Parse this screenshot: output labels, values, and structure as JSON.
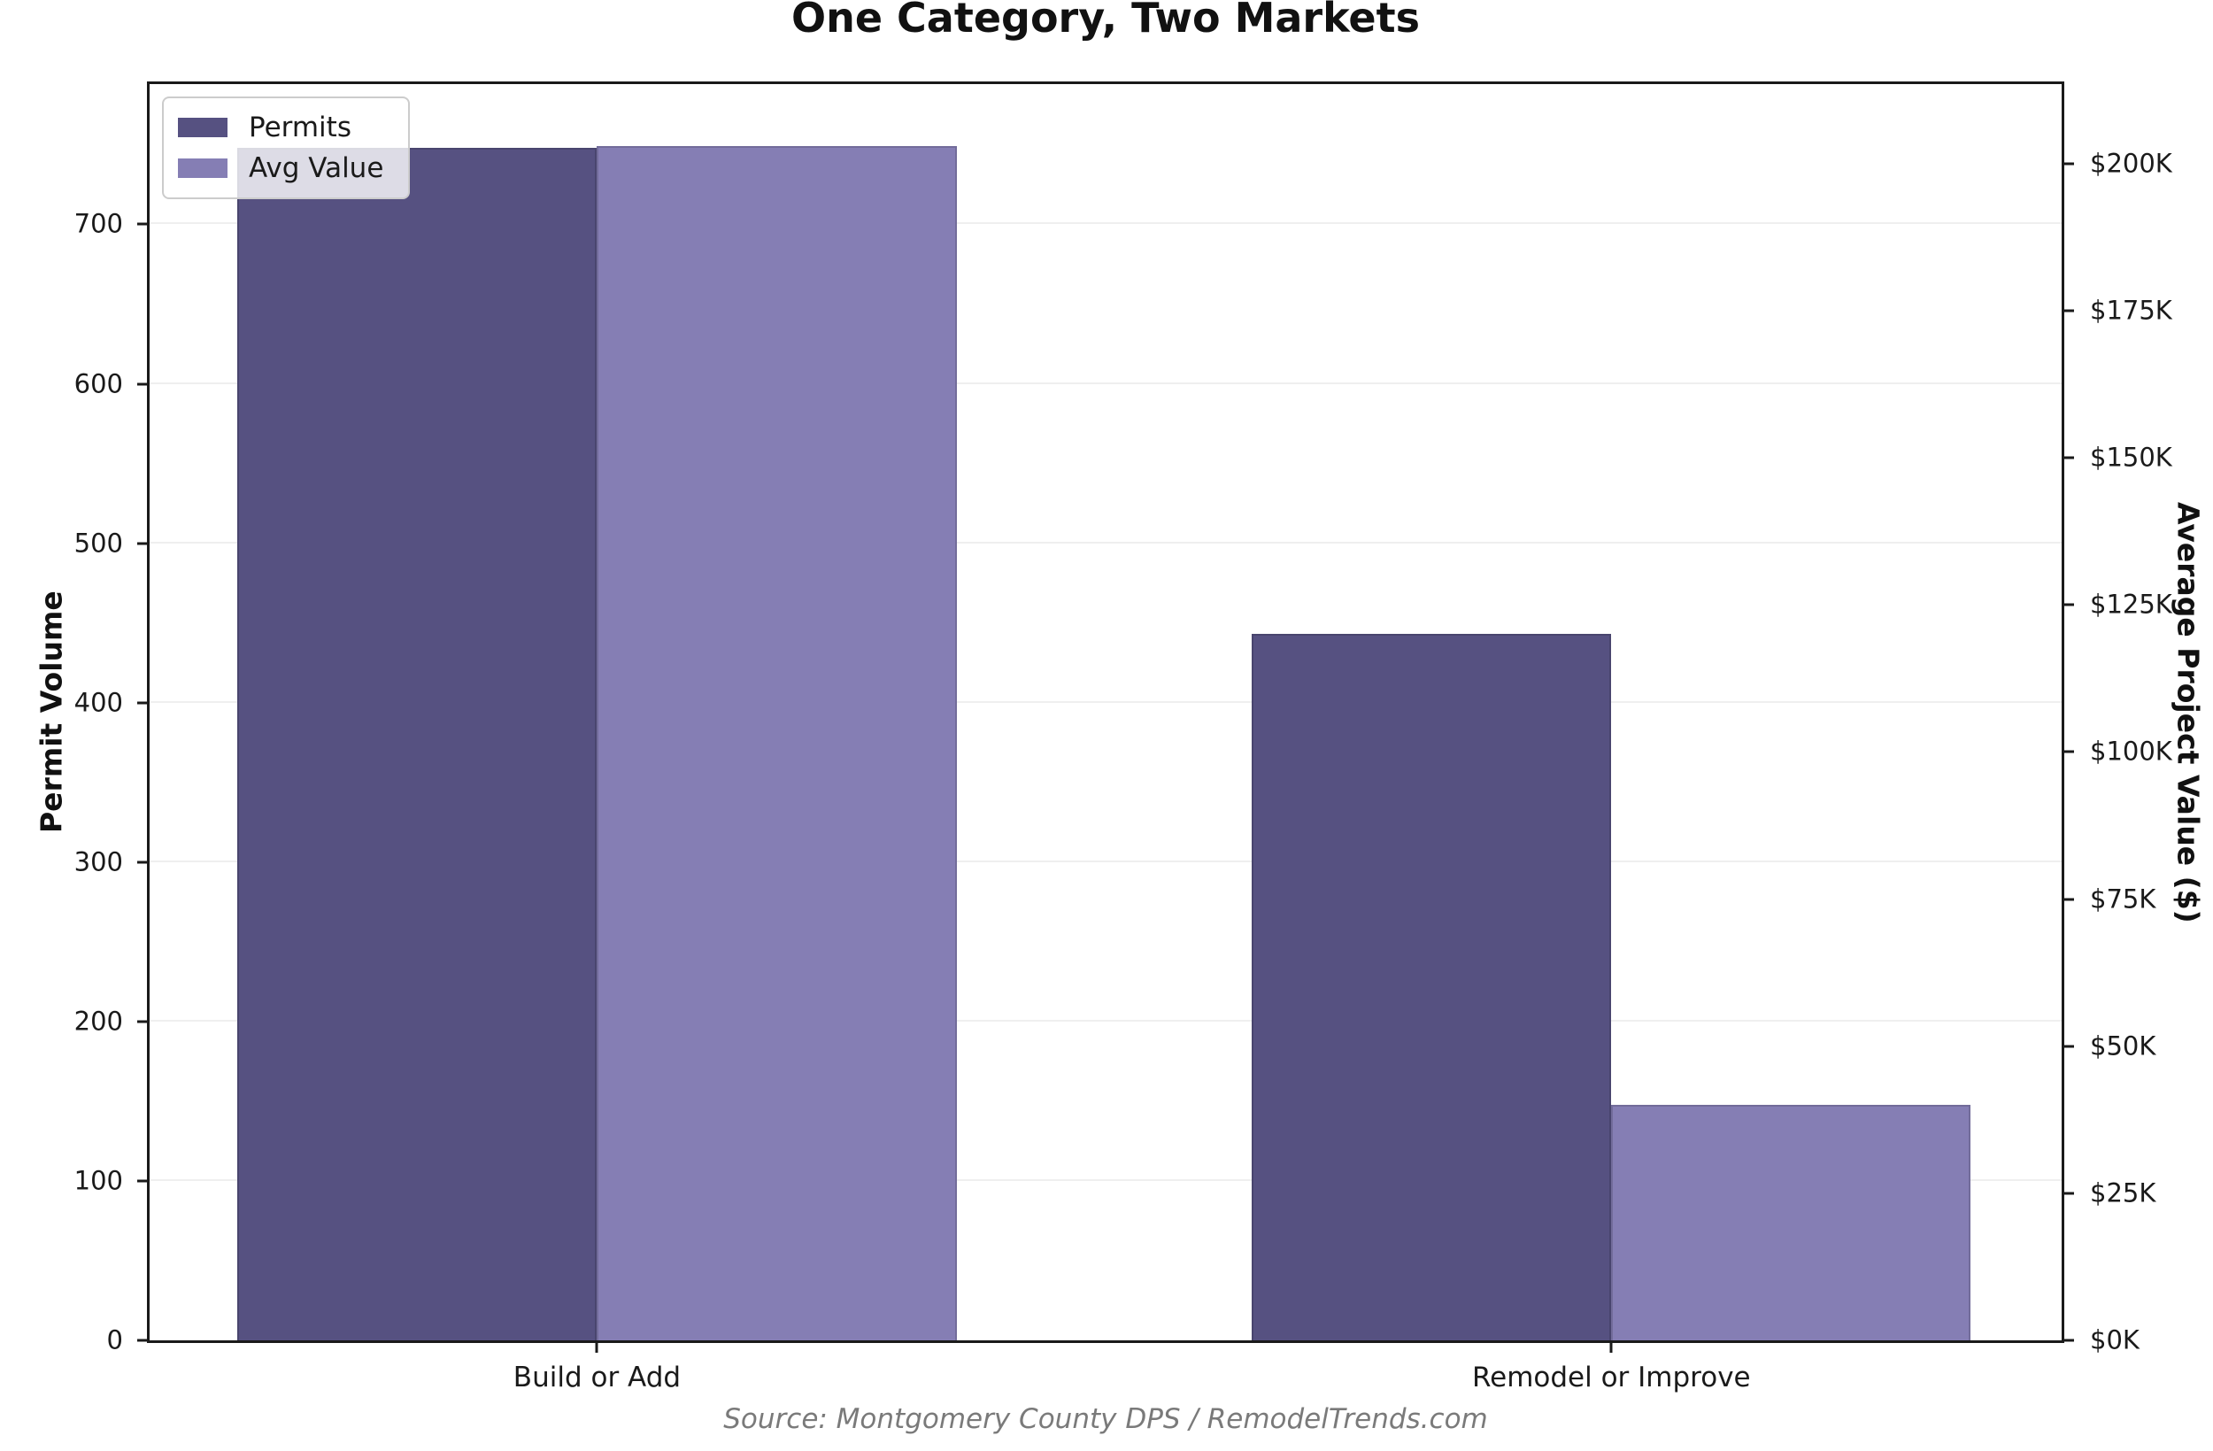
{
  "title": "One Category, Two Markets",
  "source": "Source: Montgomery County DPS / RemodelTrends.com",
  "legend": {
    "items": [
      {
        "label": "Permits",
        "color": "#565181"
      },
      {
        "label": "Avg Value",
        "color": "#857EB4"
      }
    ]
  },
  "axes": {
    "left_label": "Permit Volume",
    "right_label": "Average Project Value ($)"
  },
  "chart_data": {
    "type": "bar",
    "title": "One Category, Two Markets",
    "categories": [
      "Build or Add",
      "Remodel or Improve"
    ],
    "series": [
      {
        "name": "Permits",
        "axis": "left",
        "color": "#565181",
        "values": [
          748,
          443
        ]
      },
      {
        "name": "Avg Value",
        "axis": "right",
        "color": "#857EB4",
        "values": [
          203000,
          40000
        ]
      }
    ],
    "left_axis": {
      "label": "Permit Volume",
      "ticks": [
        0,
        100,
        200,
        300,
        400,
        500,
        600,
        700
      ],
      "range": [
        0,
        788
      ]
    },
    "right_axis": {
      "label": "Average Project Value ($)",
      "tick_labels": [
        "$0K",
        "$25K",
        "$50K",
        "$75K",
        "$100K",
        "$125K",
        "$150K",
        "$175K",
        "$200K"
      ],
      "tick_values": [
        0,
        25000,
        50000,
        75000,
        100000,
        125000,
        150000,
        175000,
        200000
      ],
      "range": [
        0,
        213500
      ]
    },
    "grid": "horizontal gridlines at left-axis ticks",
    "legend_position": "upper left",
    "layout": {
      "group_centers_pct": [
        23.4,
        76.45
      ],
      "bar_width_pct": 18.8
    },
    "source": "Source: Montgomery County DPS / RemodelTrends.com"
  }
}
